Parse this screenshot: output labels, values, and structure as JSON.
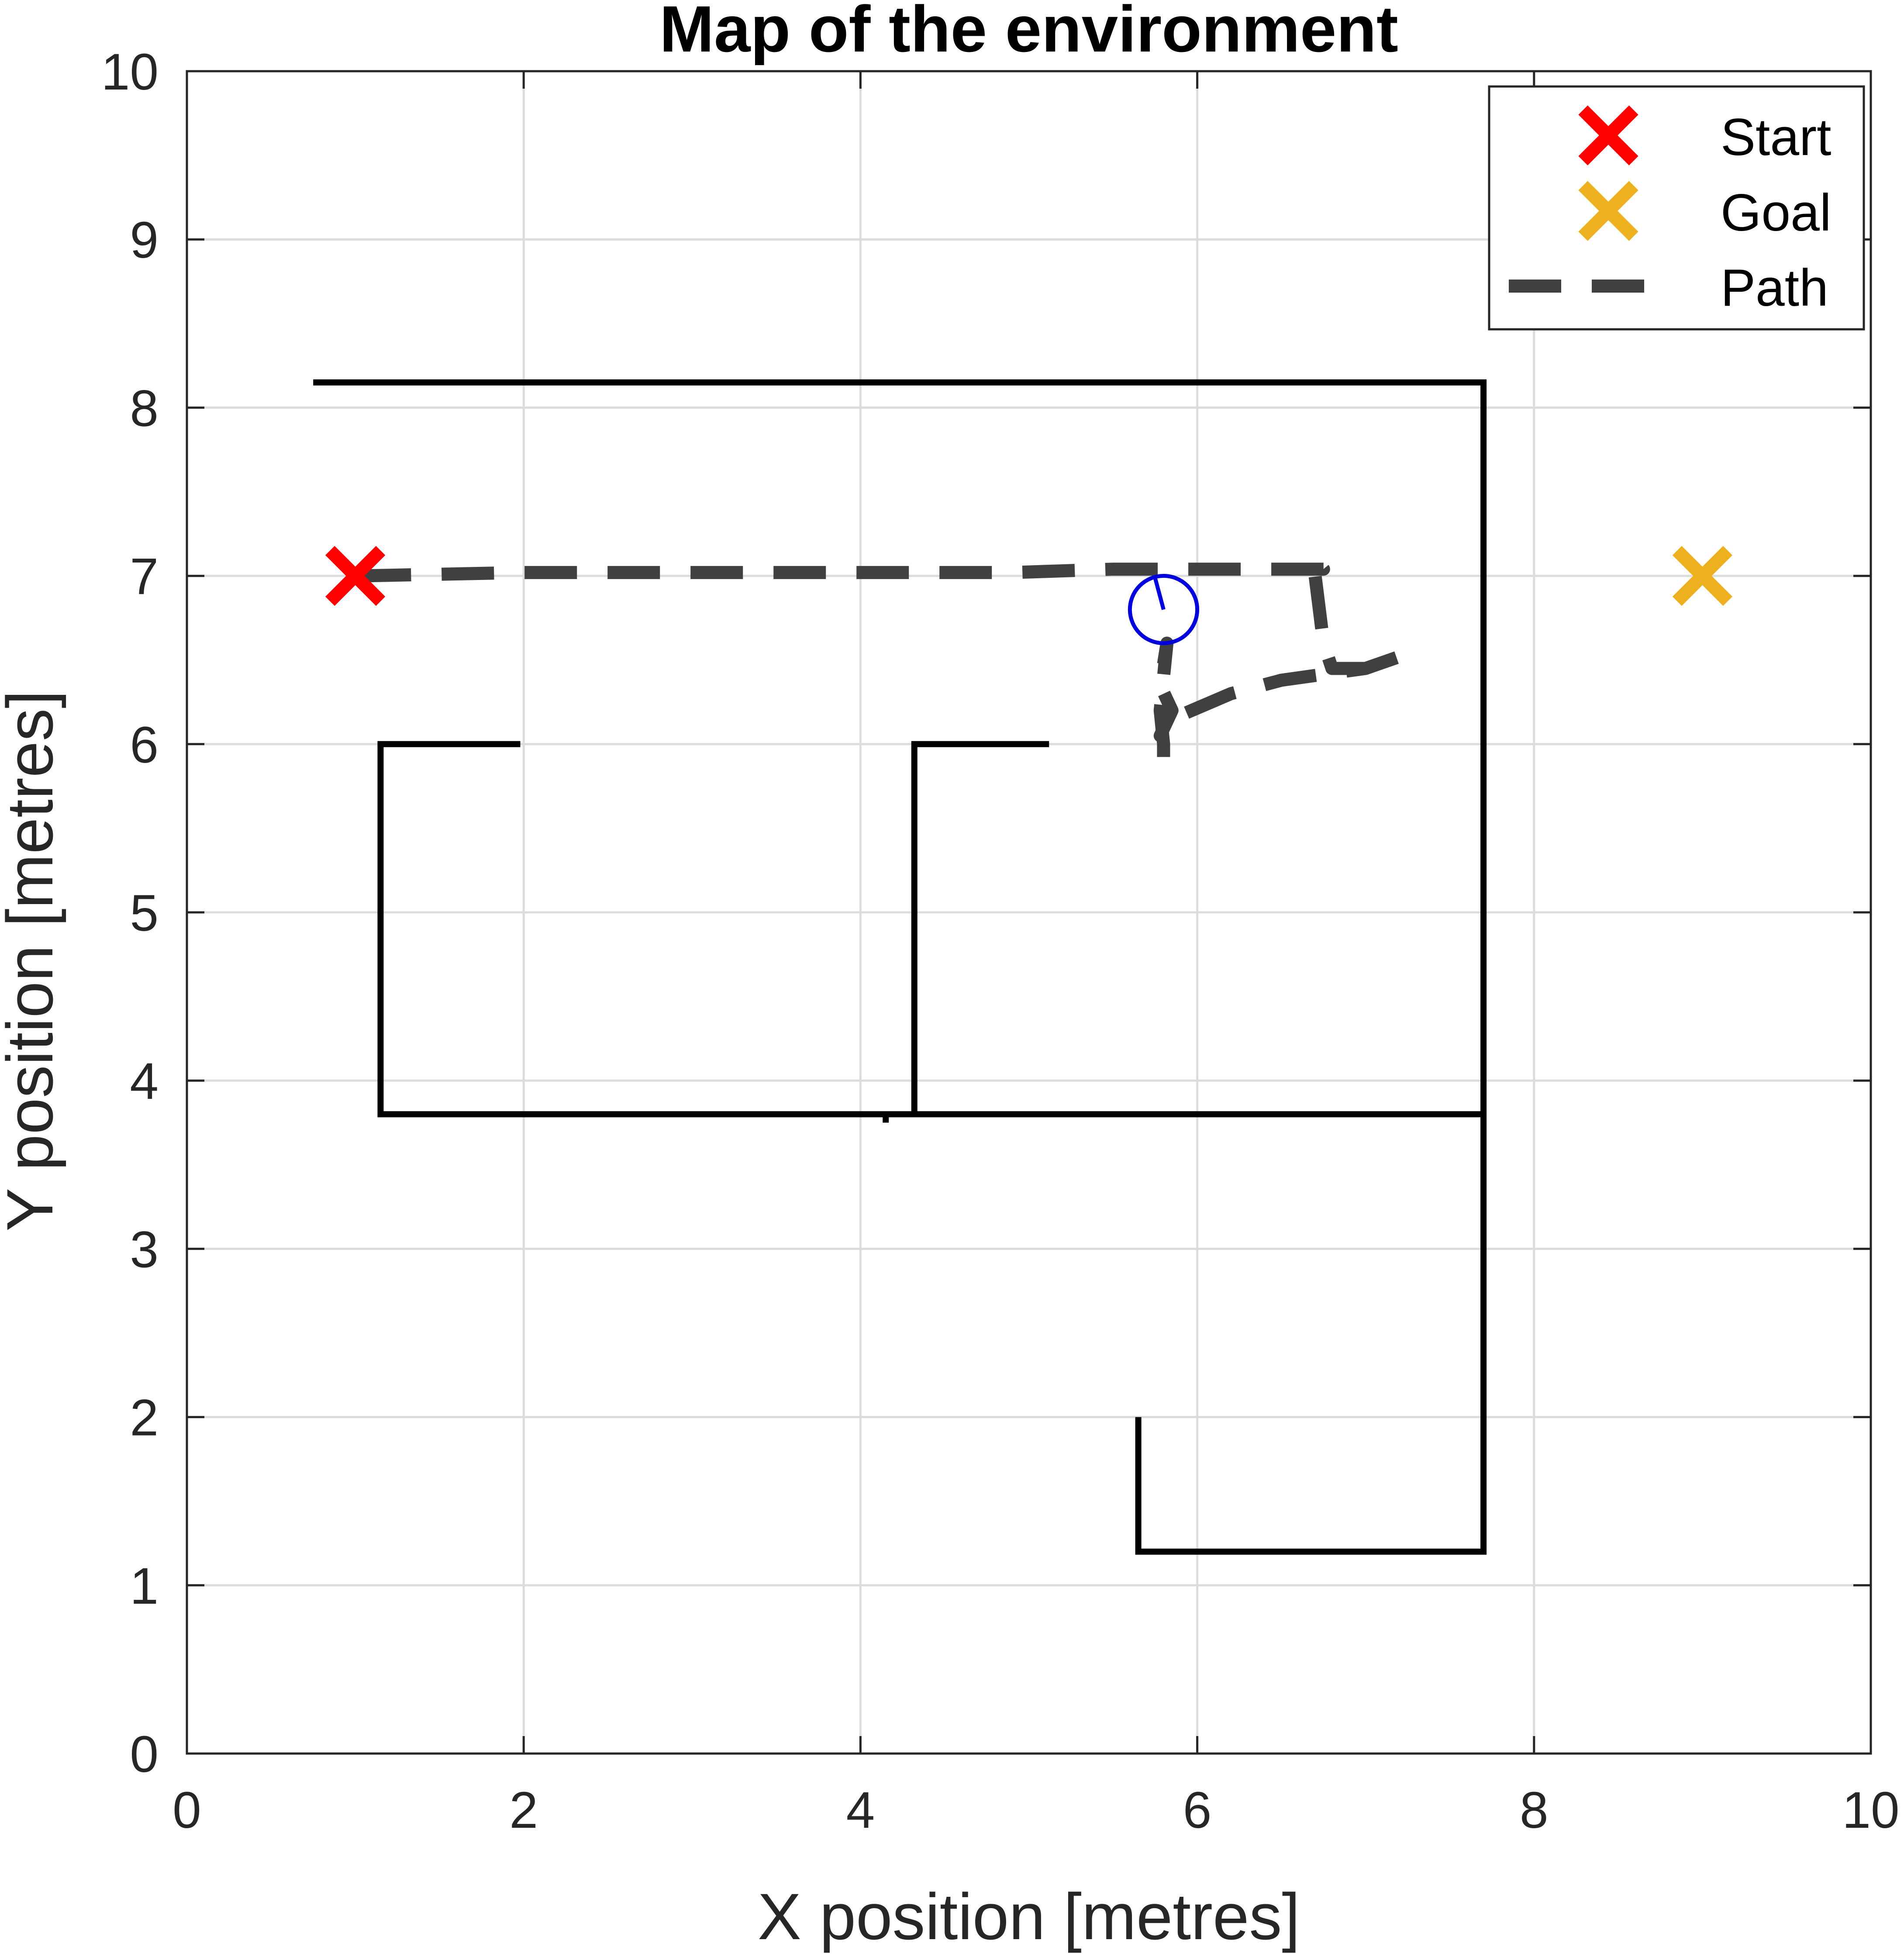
{
  "chart_data": {
    "type": "line",
    "title": "Map of the environment",
    "xlabel": "X position [metres]",
    "ylabel": "Y position [metres]",
    "xlim": [
      0,
      10
    ],
    "ylim": [
      0,
      10
    ],
    "xticks": [
      0,
      2,
      4,
      6,
      8,
      10
    ],
    "yticks": [
      0,
      1,
      2,
      3,
      4,
      5,
      6,
      7,
      8,
      9,
      10
    ],
    "grid": true,
    "legend_position": "top-right",
    "legend": [
      {
        "name": "Start",
        "marker": "x",
        "color": "#ff0000"
      },
      {
        "name": "Goal",
        "marker": "x",
        "color": "#edb120"
      },
      {
        "name": "Path",
        "style": "dashed",
        "color": "#404040"
      }
    ],
    "start": {
      "x": 1.0,
      "y": 7.0
    },
    "goal": {
      "x": 9.0,
      "y": 7.0
    },
    "walls": [
      [
        [
          0.75,
          8.15
        ],
        [
          7.7,
          8.15
        ],
        [
          7.7,
          1.2
        ],
        [
          5.65,
          1.2
        ],
        [
          5.65,
          2.0
        ]
      ],
      [
        [
          1.98,
          6.0
        ],
        [
          1.15,
          6.0
        ],
        [
          1.15,
          3.8
        ],
        [
          7.7,
          3.8
        ]
      ],
      [
        [
          5.12,
          6.0
        ],
        [
          4.32,
          6.0
        ],
        [
          4.32,
          3.8
        ]
      ],
      [
        [
          4.15,
          3.8
        ],
        [
          4.15,
          3.75
        ]
      ]
    ],
    "path": [
      [
        1.02,
        7.0
      ],
      [
        2.0,
        7.02
      ],
      [
        3.0,
        7.02
      ],
      [
        4.0,
        7.02
      ],
      [
        4.9,
        7.02
      ],
      [
        5.5,
        7.04
      ],
      [
        6.2,
        7.04
      ],
      [
        6.75,
        7.04
      ],
      [
        6.7,
        7.1
      ],
      [
        6.7,
        7.0
      ],
      [
        6.75,
        6.6
      ],
      [
        6.8,
        6.45
      ],
      [
        7.0,
        6.45
      ],
      [
        7.2,
        6.52
      ],
      [
        7.0,
        6.45
      ],
      [
        6.5,
        6.38
      ],
      [
        6.2,
        6.3
      ],
      [
        5.85,
        6.15
      ],
      [
        5.78,
        6.05
      ],
      [
        5.85,
        6.2
      ],
      [
        5.78,
        6.35
      ],
      [
        5.82,
        6.6
      ],
      [
        5.8,
        6.4
      ],
      [
        5.78,
        6.2
      ],
      [
        5.8,
        6.0
      ],
      [
        5.8,
        5.9
      ]
    ],
    "robot": {
      "x": 5.8,
      "y": 6.8,
      "radius": 0.2,
      "heading_deg": 105,
      "color": "#0000dd"
    }
  }
}
